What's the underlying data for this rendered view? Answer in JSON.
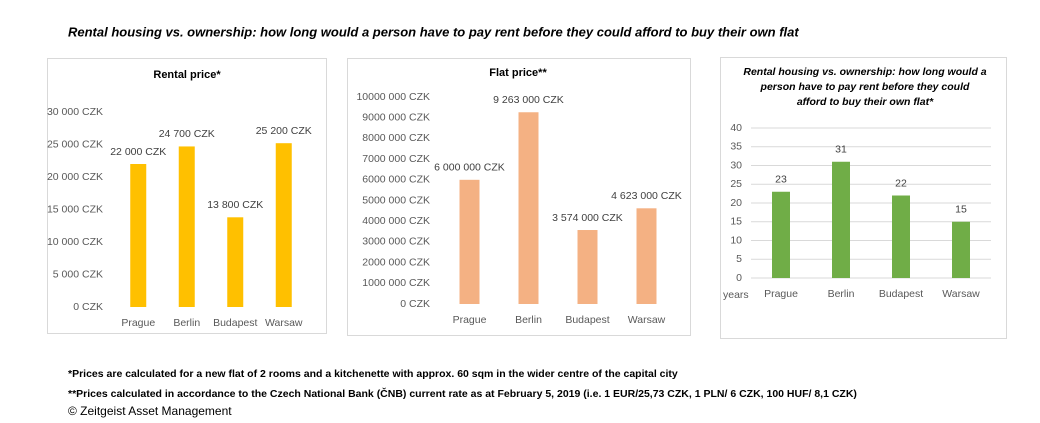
{
  "title": "Rental housing vs. ownership: how long would a person have to pay rent before they could afford to buy their own flat",
  "notes": [
    "*Prices are calculated for a new flat of 2 rooms and a kitchenette with approx. 60 sqm in the wider centre of the capital city",
    "**Prices calculated in accordance to the Czech National Bank (ČNB) current rate as at February 5, 2019 (i.e. 1 EUR/25,73 CZK, 1 PLN/ 6 CZK, 100 HUF/ 8,1 CZK)"
  ],
  "copyright": "© Zeitgeist Asset Management",
  "chart_data": [
    {
      "type": "bar",
      "title": "Rental price*",
      "categories": [
        "Prague",
        "Berlin",
        "Budapest",
        "Warsaw"
      ],
      "values": [
        22000,
        24700,
        13800,
        25200
      ],
      "value_labels": [
        "22 000 CZK",
        "24 700 CZK",
        "13 800 CZK",
        "25 200 CZK"
      ],
      "color": "#ffc000",
      "ylim": [
        0,
        30000
      ],
      "grid": false,
      "yticks": [
        {
          "value": 0,
          "label": "0 CZK"
        },
        {
          "value": 5000,
          "label": "5 000 CZK"
        },
        {
          "value": 10000,
          "label": "10 000 CZK"
        },
        {
          "value": 15000,
          "label": "15 000 CZK"
        },
        {
          "value": 20000,
          "label": "20 000 CZK"
        },
        {
          "value": 25000,
          "label": "25 000 CZK"
        },
        {
          "value": 30000,
          "label": "30 000 CZK"
        }
      ]
    },
    {
      "type": "bar",
      "title": "Flat price**",
      "categories": [
        "Prague",
        "Berlin",
        "Budapest",
        "Warsaw"
      ],
      "values": [
        6000000,
        9263000,
        3574000,
        4623000
      ],
      "value_labels": [
        "6 000 000 CZK",
        "9 263 000 CZK",
        "3 574 000 CZK",
        "4 623 000 CZK"
      ],
      "color": "#f4b183",
      "ylim": [
        0,
        10000000
      ],
      "grid": false,
      "yticks": [
        {
          "value": 0,
          "label": "0 CZK"
        },
        {
          "value": 1000000,
          "label": "1000 000 CZK"
        },
        {
          "value": 2000000,
          "label": "2000 000 CZK"
        },
        {
          "value": 3000000,
          "label": "3000 000 CZK"
        },
        {
          "value": 4000000,
          "label": "4000 000 CZK"
        },
        {
          "value": 5000000,
          "label": "5000 000 CZK"
        },
        {
          "value": 6000000,
          "label": "6000 000 CZK"
        },
        {
          "value": 7000000,
          "label": "7000 000 CZK"
        },
        {
          "value": 8000000,
          "label": "8000 000 CZK"
        },
        {
          "value": 9000000,
          "label": "9000 000 CZK"
        },
        {
          "value": 10000000,
          "label": "10000 000 CZK"
        }
      ]
    },
    {
      "type": "bar",
      "title": "Rental housing vs. ownership: how long would a person have to pay rent before they could afford to buy their own flat*",
      "y_label": "years",
      "categories": [
        "Prague",
        "Berlin",
        "Budapest",
        "Warsaw"
      ],
      "values": [
        23,
        31,
        22,
        15
      ],
      "color": "#70ad47",
      "ylim": [
        0,
        40
      ],
      "grid": true,
      "yticks": [
        0,
        5,
        10,
        15,
        20,
        25,
        30,
        35,
        40
      ]
    }
  ]
}
